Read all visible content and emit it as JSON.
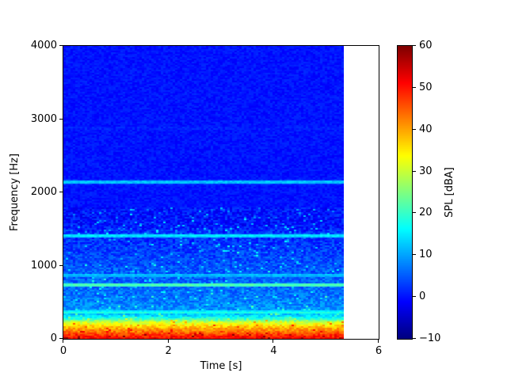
{
  "chart_data": {
    "type": "heatmap",
    "subtype": "spectrogram",
    "title": "",
    "xlabel": "Time [s]",
    "ylabel": "Frequency [Hz]",
    "colorbar_label": "SPL [dBA]",
    "colormap": "jet",
    "xlim": [
      0,
      6
    ],
    "ylim": [
      0,
      4000
    ],
    "clim": [
      -10,
      60
    ],
    "x_ticks": [
      0,
      2,
      4,
      6
    ],
    "y_ticks": [
      0,
      1000,
      2000,
      3000,
      4000
    ],
    "colorbar_ticks": [
      60,
      50,
      40,
      30,
      20,
      10,
      0,
      -10
    ],
    "grid": false,
    "legend": null,
    "signal_duration_s": 5.33,
    "baseline_spl_by_freq": [
      [
        0,
        52
      ],
      [
        40,
        49
      ],
      [
        90,
        44
      ],
      [
        160,
        38
      ],
      [
        230,
        30
      ],
      [
        270,
        20
      ],
      [
        320,
        13
      ],
      [
        400,
        9
      ],
      [
        550,
        7
      ],
      [
        700,
        6
      ],
      [
        900,
        5
      ],
      [
        1200,
        3
      ],
      [
        1500,
        1
      ],
      [
        1700,
        -3
      ],
      [
        1900,
        -5
      ],
      [
        2300,
        -6
      ],
      [
        2700,
        -6
      ],
      [
        3000,
        -7
      ],
      [
        3500,
        -8
      ],
      [
        4000,
        -8
      ]
    ],
    "tonal_peaks": [
      {
        "freq": 290,
        "spl": 15,
        "bandwidth": 14
      },
      {
        "freq": 360,
        "spl": 18,
        "bandwidth": 13
      },
      {
        "freq": 735,
        "spl": 21,
        "bandwidth": 12
      },
      {
        "freq": 870,
        "spl": 12,
        "bandwidth": 10
      },
      {
        "freq": 1410,
        "spl": 15,
        "bandwidth": 10
      },
      {
        "freq": 2140,
        "spl": 12,
        "bandwidth": 10
      },
      {
        "freq": 2870,
        "spl": 1,
        "bandwidth": 10
      }
    ],
    "noise_spread_db": 7,
    "colors": {
      "background": "#ffffff",
      "axis": "#000000",
      "cmap_low": "#000080",
      "cmap_high": "#800000"
    }
  }
}
